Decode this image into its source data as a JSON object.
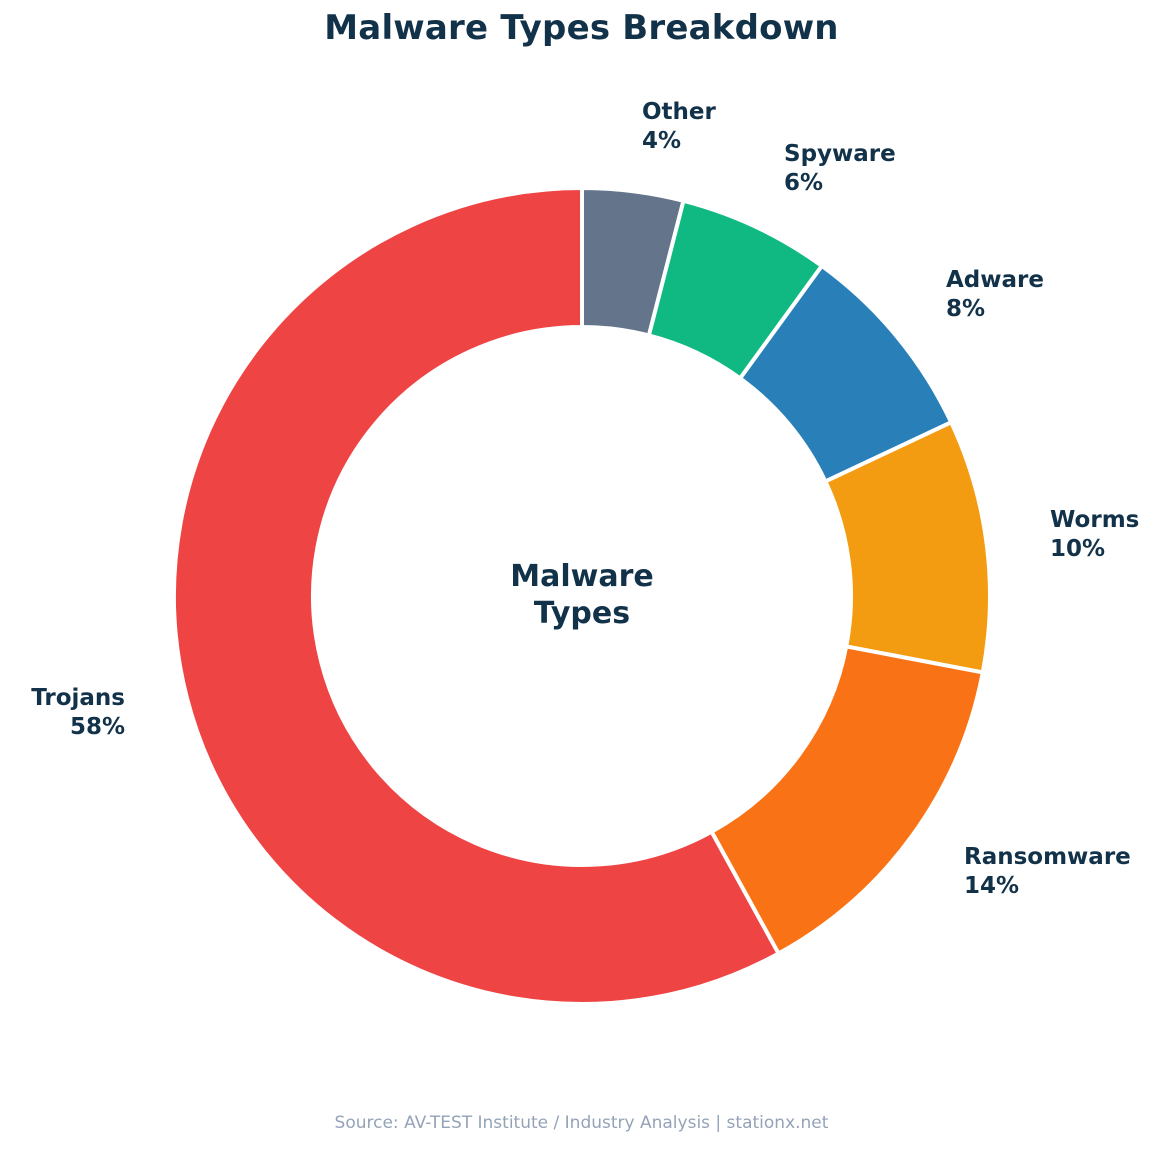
{
  "title": "Malware Types Breakdown",
  "center_label": {
    "line1": "Malware",
    "line2": "Types"
  },
  "source": "Source: AV-TEST Institute / Industry Analysis | stationx.net",
  "labels": {
    "other": {
      "name": "Other",
      "pct": "4%"
    },
    "spyware": {
      "name": "Spyware",
      "pct": "6%"
    },
    "adware": {
      "name": "Adware",
      "pct": "8%"
    },
    "worms": {
      "name": "Worms",
      "pct": "10%"
    },
    "ransomware": {
      "name": "Ransomware",
      "pct": "14%"
    },
    "trojans": {
      "name": "Trojans",
      "pct": "58%"
    }
  },
  "chart_data": {
    "type": "pie",
    "variant": "donut",
    "title": "Malware Types Breakdown",
    "center_text": "Malware Types",
    "categories": [
      "Trojans",
      "Ransomware",
      "Worms",
      "Adware",
      "Spyware",
      "Other"
    ],
    "values": [
      58,
      14,
      10,
      8,
      6,
      4
    ],
    "unit": "%",
    "colors": {
      "Trojans": "#ef4444",
      "Ransomware": "#f97316",
      "Worms": "#f39c12",
      "Adware": "#2980b9",
      "Spyware": "#10b981",
      "Other": "#64748b"
    },
    "start_angle": "12 o'clock",
    "direction": "counterclockwise from Trojans (Other first clockwise from top)",
    "legend": "none (direct labels)",
    "annotation": "Source: AV-TEST Institute / Industry Analysis | stationx.net"
  }
}
